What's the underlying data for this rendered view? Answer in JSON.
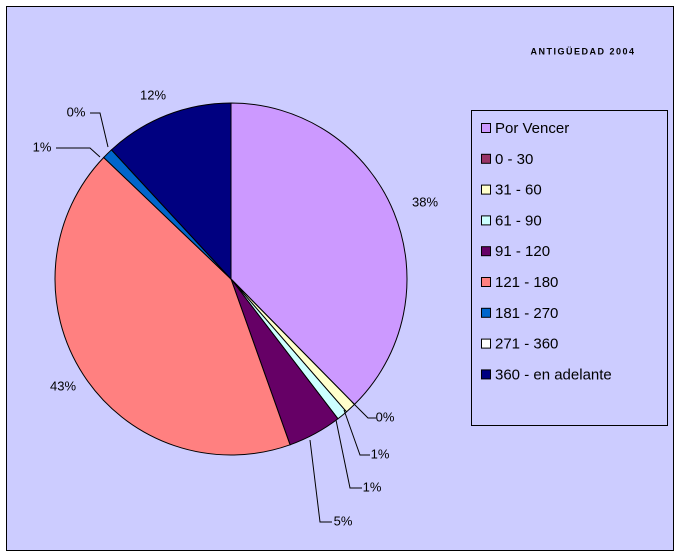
{
  "chart_data": {
    "type": "pie",
    "title": "ANTIGÜEDAD 2004",
    "categories": [
      "Por Vencer",
      "0 - 30",
      "31 - 60",
      "61 - 90",
      "91 - 120",
      "121 - 180",
      "181 - 270",
      "271 - 360",
      "360 - en adelante"
    ],
    "values": [
      38,
      0,
      1,
      1,
      5,
      43,
      1,
      0,
      12
    ],
    "value_labels": [
      "38%",
      "0%",
      "1%",
      "1%",
      "5%",
      "43%",
      "1%",
      "0%",
      "12%"
    ],
    "colors": [
      "#cc99ff",
      "#993366",
      "#ffffcc",
      "#ccffff",
      "#660066",
      "#ff8080",
      "#0066cc",
      "#ffffff",
      "#000080"
    ],
    "legend": "right"
  }
}
